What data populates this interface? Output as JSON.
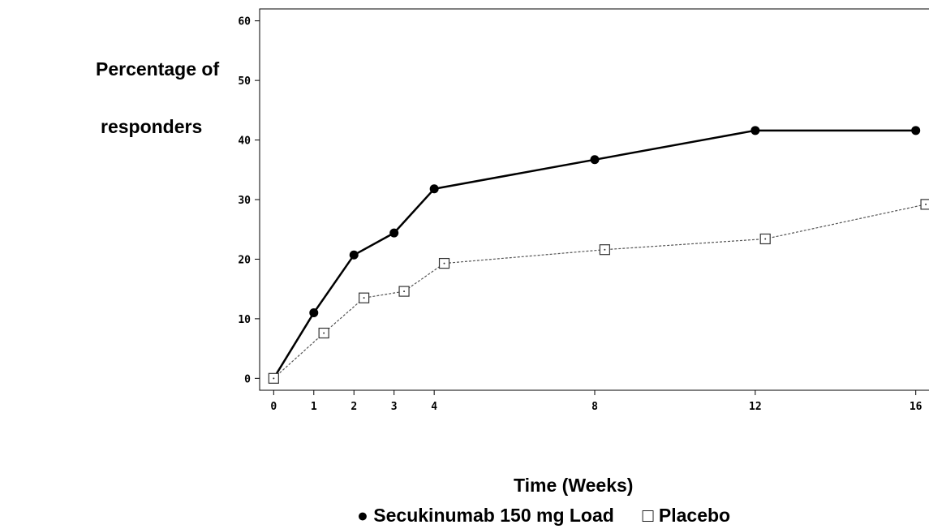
{
  "chart_data": {
    "type": "line",
    "title": "",
    "ylabel_line1": "Percentage of",
    "ylabel_line2": "responders",
    "xlabel": "Time (Weeks)",
    "x_ticks": [
      0,
      1,
      2,
      3,
      4,
      8,
      12,
      16
    ],
    "y_ticks": [
      0,
      10,
      20,
      30,
      40,
      50,
      60
    ],
    "xlim": [
      -0.35,
      16.35
    ],
    "ylim": [
      -2,
      62
    ],
    "grid": false,
    "legend_position": "bottom",
    "series": [
      {
        "name": "Secukinumab 150 mg Load",
        "legend_symbol": "●",
        "marker": "filled-circle",
        "line_style": "solid",
        "x": [
          0,
          1,
          2,
          3,
          4,
          8,
          12,
          16
        ],
        "y": [
          0,
          11,
          20.7,
          24.4,
          31.8,
          36.7,
          41.6,
          41.6
        ]
      },
      {
        "name": "Placebo",
        "legend_symbol": "□",
        "marker": "open-square",
        "line_style": "dashed",
        "x": [
          0,
          1.25,
          2.25,
          3.25,
          4.25,
          8.25,
          12.25,
          16.25
        ],
        "y": [
          0,
          7.6,
          13.5,
          14.6,
          19.3,
          21.6,
          23.4,
          29.2
        ]
      }
    ]
  }
}
